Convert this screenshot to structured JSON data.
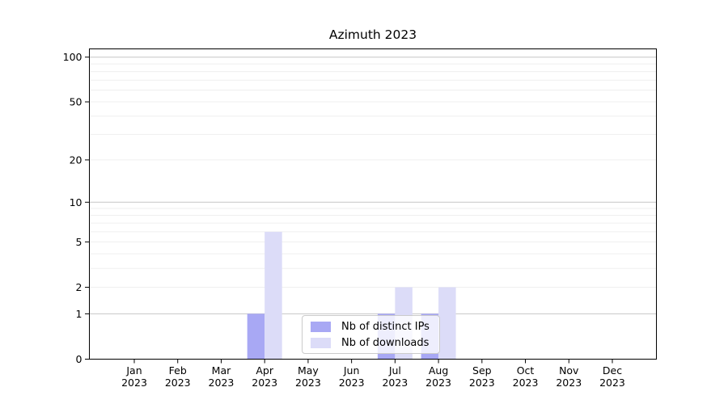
{
  "page": {
    "background": "#ffffff",
    "text_color": "#000000"
  },
  "chart_data": {
    "type": "bar",
    "title": "Azimuth 2023",
    "categories": [
      "Jan",
      "Feb",
      "Mar",
      "Apr",
      "May",
      "Jun",
      "Jul",
      "Aug",
      "Sep",
      "Oct",
      "Nov",
      "Dec"
    ],
    "x_year_suffix": "2023",
    "series": [
      {
        "name": "Nb of distinct IPs",
        "color": "#a8a8f4",
        "values": [
          0,
          0,
          0,
          1,
          0,
          0,
          1,
          1,
          0,
          0,
          0,
          0
        ]
      },
      {
        "name": "Nb of downloads",
        "color": "#dcdcf8",
        "values": [
          0,
          0,
          0,
          6,
          0,
          0,
          2,
          2,
          0,
          0,
          0,
          0
        ]
      }
    ],
    "xlabel": "",
    "ylabel": "",
    "yscale": "symlog-log1p",
    "ylim": [
      0,
      100
    ],
    "y_ticks": [
      0,
      1,
      2,
      5,
      10,
      20,
      50,
      100
    ],
    "gridlines": {
      "on": true,
      "major": [
        1,
        10,
        100
      ],
      "minor": [
        2,
        3,
        4,
        5,
        6,
        7,
        8,
        9,
        20,
        30,
        40,
        50,
        60,
        70,
        80,
        90
      ],
      "major_color": "#c6c6c6",
      "minor_color": "#efefef"
    },
    "legend": {
      "position": "bottom-center-inside",
      "entries": [
        "Nb of distinct IPs",
        "Nb of downloads"
      ]
    },
    "axis_color": "#000000"
  }
}
